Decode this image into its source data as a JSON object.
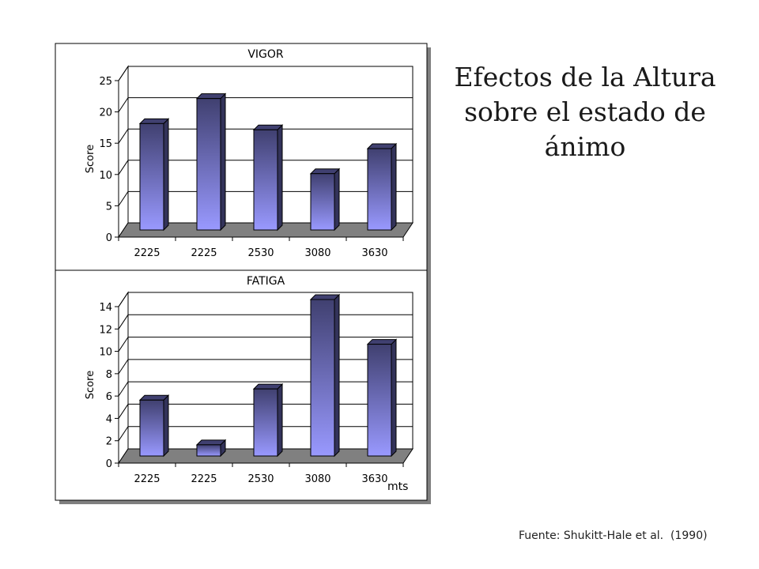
{
  "slide": {
    "title": "Efectos de la Altura sobre el estado de ánimo",
    "source": "Fuente: Shukitt-Hale et al.  (1990)",
    "unit_label": "mts"
  },
  "colors": {
    "bar_top": "#404070",
    "bar_bottom": "#9999ff",
    "bar_side": "#33335a",
    "floor": "#808080",
    "frame_shadow": "#808080"
  },
  "chart_data": [
    {
      "type": "bar",
      "title": "VIGOR",
      "ylabel": "Score",
      "xlabel": "",
      "categories": [
        "2225",
        "2225",
        "2530",
        "3080",
        "3630"
      ],
      "values": [
        17,
        21,
        16,
        9,
        13
      ],
      "ylim": [
        0,
        25
      ],
      "yticks": [
        0,
        5,
        10,
        15,
        20,
        25
      ],
      "grid": true
    },
    {
      "type": "bar",
      "title": "FATIGA",
      "ylabel": "Score",
      "xlabel": "",
      "categories": [
        "2225",
        "2225",
        "2530",
        "3080",
        "3630"
      ],
      "values": [
        5,
        1,
        6,
        14,
        10
      ],
      "ylim": [
        0,
        14
      ],
      "yticks": [
        0,
        2,
        4,
        6,
        8,
        10,
        12,
        14
      ],
      "grid": true
    }
  ]
}
